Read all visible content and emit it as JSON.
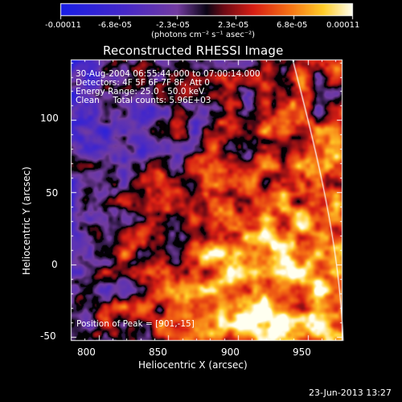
{
  "colorbar": {
    "ticks": [
      "-0.00011",
      "-6.8e-05",
      "-2.3e-05",
      "2.3e-05",
      "6.8e-05",
      "0.00011"
    ],
    "units_label": "(photons cm⁻² s⁻¹ asec⁻²)"
  },
  "plot": {
    "title": "Reconstructed RHESSI Image",
    "annotation_lines": [
      "30-Aug-2004 06:55:44.000 to 07:00:14.000",
      "Detectors: 4F 5F 6F 7F 8F, Att 0",
      "Energy Range: 25.0 - 50.0 keV",
      "Clean     Total counts: 5.96E+03"
    ],
    "peak_label": "Position of Peak = [901,-15]",
    "xlabel": "Heliocentric X (arcsec)",
    "ylabel": "Heliocentric Y (arcsec)",
    "x_ticks": [
      "800",
      "850",
      "900",
      "950"
    ],
    "y_ticks": [
      "-50",
      "0",
      "50",
      "100"
    ],
    "xlim": [
      780,
      975
    ],
    "ylim": [
      -53,
      142
    ]
  },
  "footer": {
    "date": "23-Jun-2013 13:27"
  },
  "chart_data": {
    "type": "heatmap",
    "title": "Reconstructed RHESSI Image",
    "xlabel": "Heliocentric X (arcsec)",
    "ylabel": "Heliocentric Y (arcsec)",
    "xlim": [
      780,
      975
    ],
    "ylim": [
      -53,
      142
    ],
    "x_ticks": [
      800,
      850,
      900,
      950
    ],
    "y_ticks": [
      -50,
      0,
      50,
      100
    ],
    "colorbar_range": [
      -0.00011,
      0.00011
    ],
    "peak_position": [
      901,
      -15
    ]
  }
}
